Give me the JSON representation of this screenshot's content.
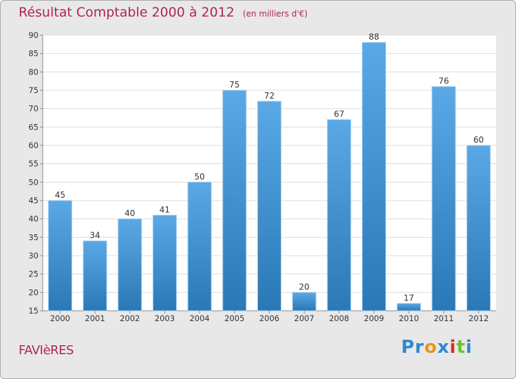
{
  "title": "Résultat Comptable 2000 à 2012",
  "title_unit": "(en milliers d'€)",
  "commune": "FAVIèRES",
  "brand": {
    "p1": "Pr",
    "p2": "o",
    "p3": "x",
    "p4": "i",
    "p5": "t",
    "p6": "i"
  },
  "colors": {
    "bar_top": "#5aa9e6",
    "bar_bottom": "#2a78b6",
    "title": "#b0245a",
    "axis_text": "#333333"
  },
  "chart_data": {
    "type": "bar",
    "title": "Résultat Comptable 2000 à 2012",
    "categories": [
      "2000",
      "2001",
      "2002",
      "2003",
      "2004",
      "2005",
      "2006",
      "2007",
      "2008",
      "2009",
      "2010",
      "2011",
      "2012"
    ],
    "values": [
      45,
      34,
      40,
      41,
      50,
      75,
      72,
      20,
      67,
      88,
      17,
      76,
      60
    ],
    "data_labels": [
      "45",
      "34",
      "40",
      "41",
      "50",
      "75",
      "72",
      "20",
      "67",
      "88",
      "17",
      "76",
      "60"
    ],
    "ylim": [
      15,
      90
    ],
    "yticks": [
      "15",
      "20",
      "25",
      "30",
      "35",
      "40",
      "45",
      "50",
      "55",
      "60",
      "65",
      "70",
      "75",
      "80",
      "85",
      "90"
    ],
    "xlabel": "",
    "ylabel": "",
    "grid": true
  }
}
